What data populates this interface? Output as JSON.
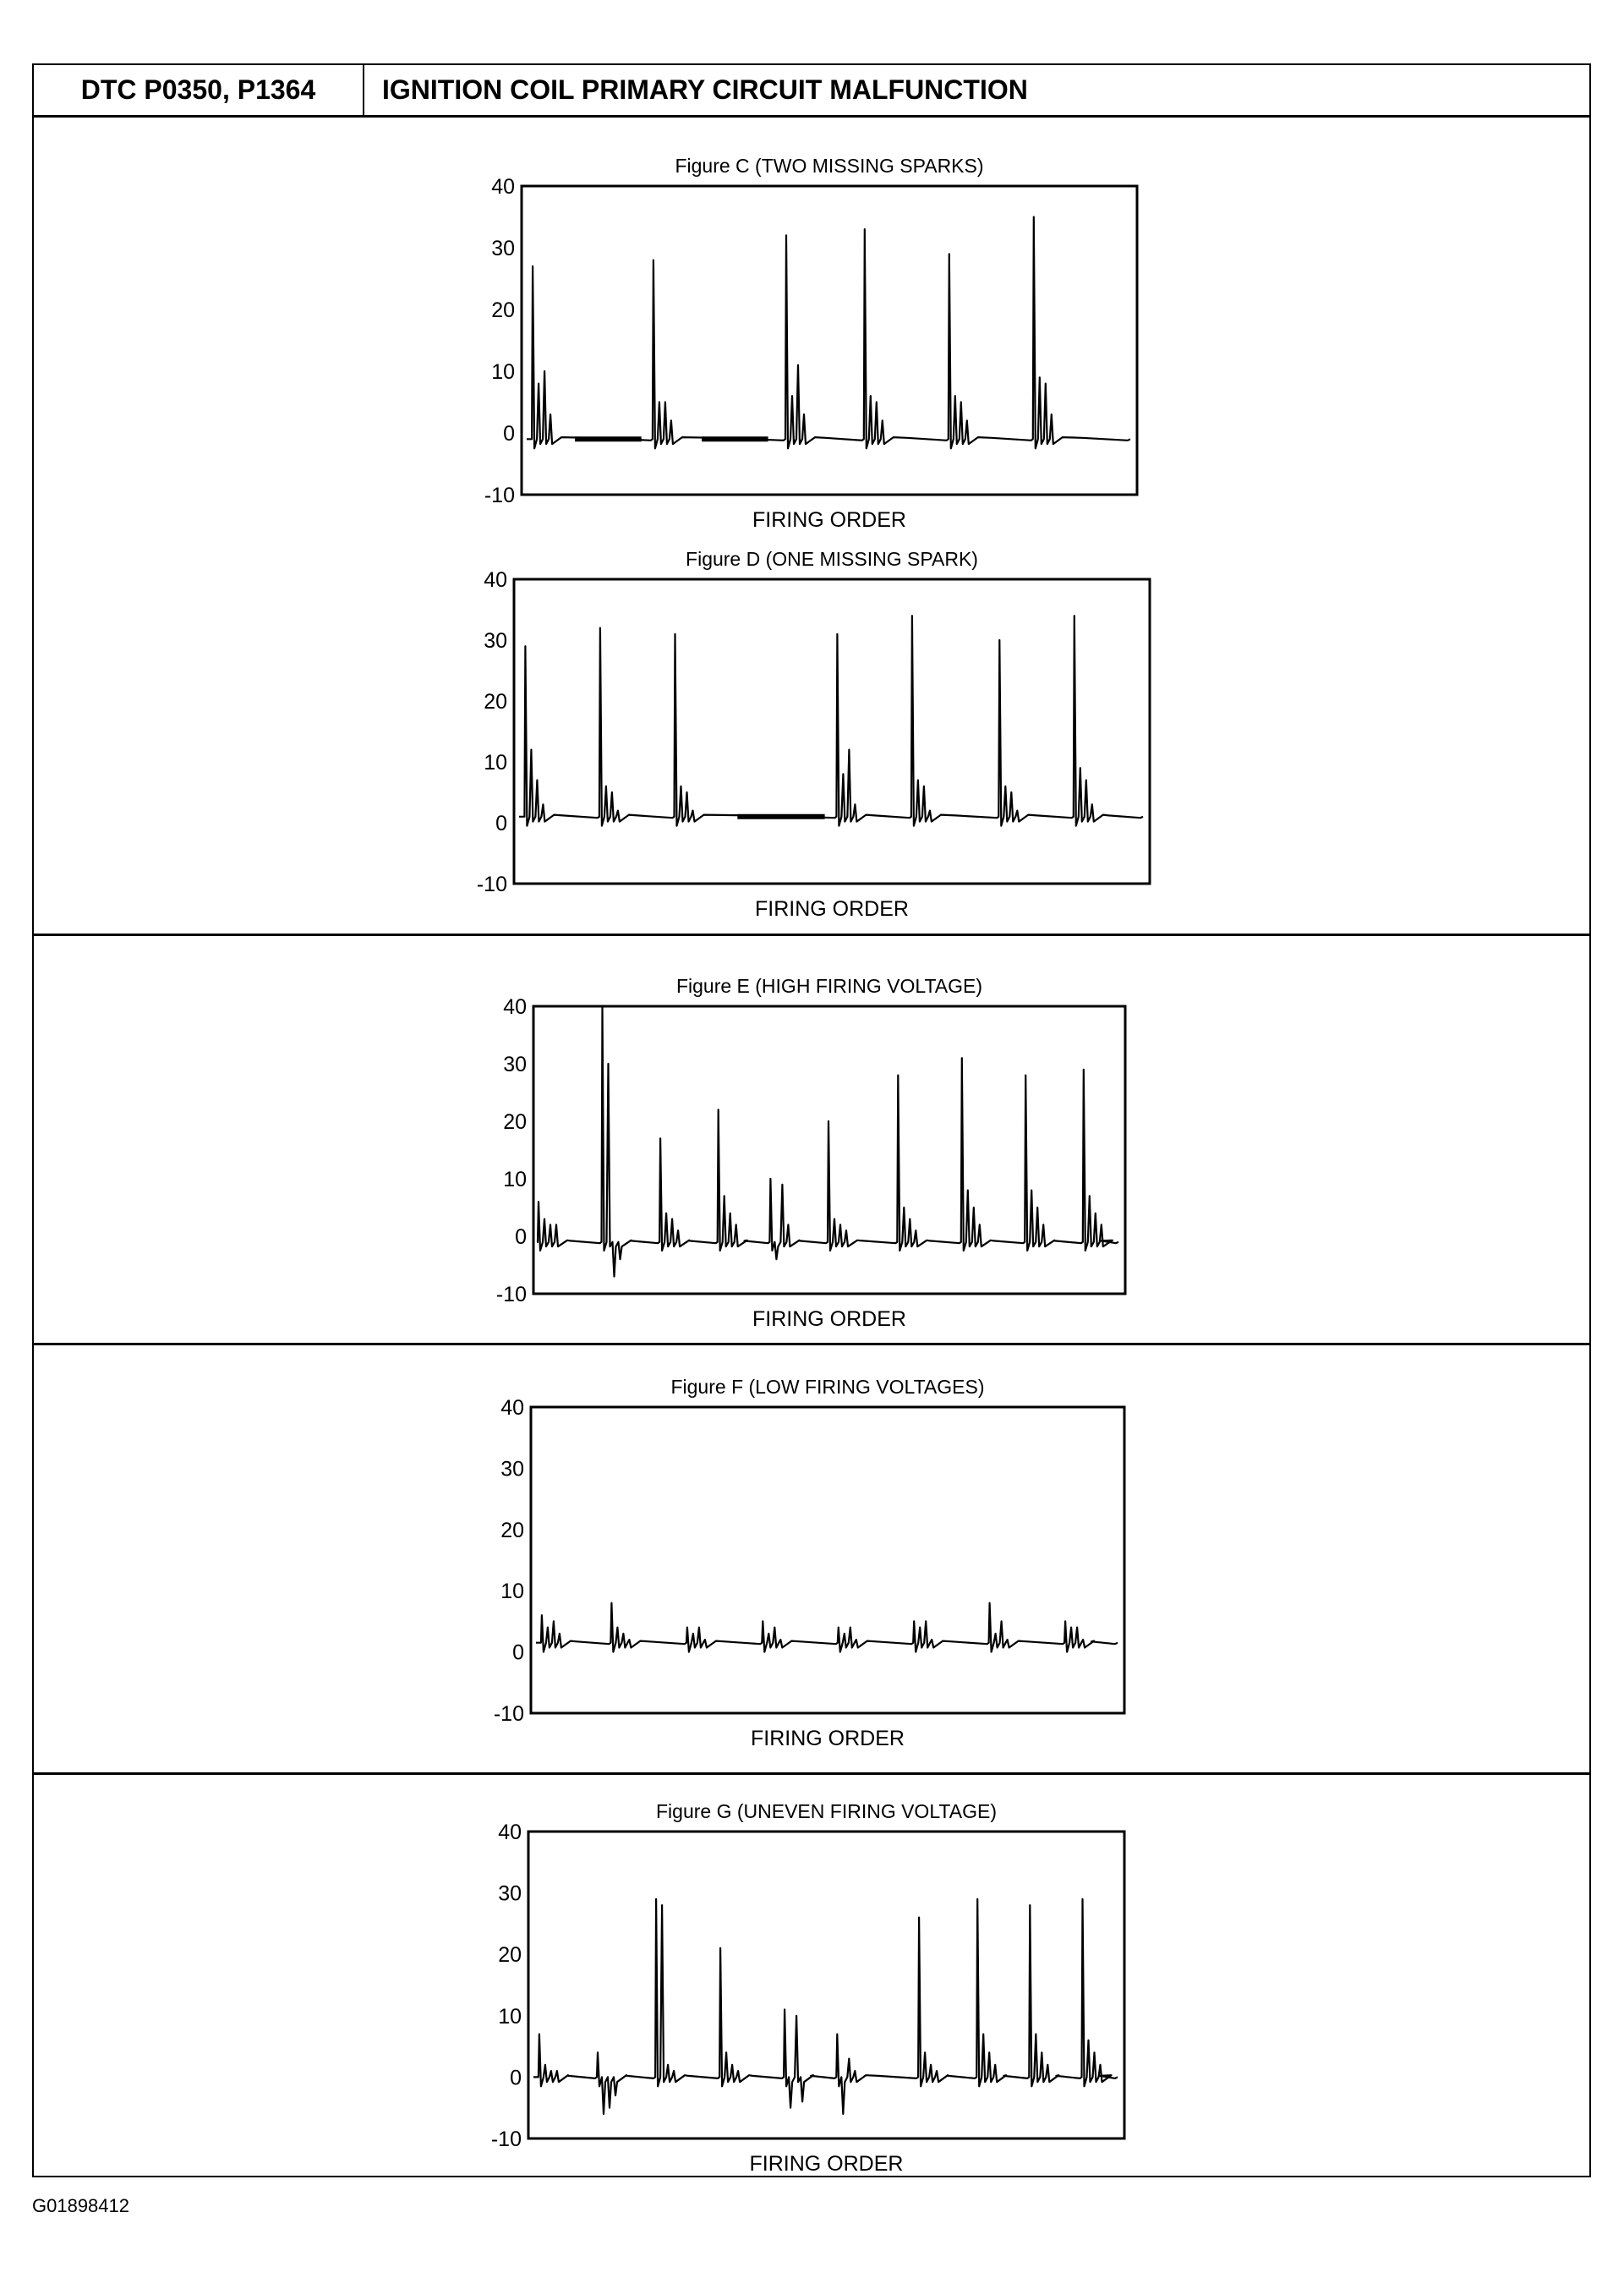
{
  "header": {
    "dtc_codes": "DTC P0350, P1364",
    "title": "IGNITION COIL PRIMARY CIRCUIT MALFUNCTION"
  },
  "footer": {
    "image_code": "G01898412"
  },
  "chart_data": [
    {
      "type": "line",
      "title": "Figure C (TWO MISSING SPARKS)",
      "xlabel": "FIRING ORDER",
      "ylabel": "",
      "ylim": [
        -10,
        40
      ],
      "yticks": [
        40,
        30,
        20,
        10,
        0,
        -10
      ],
      "grid": false,
      "baseline": -1,
      "firing_events": [
        {
          "t": 0.01,
          "peak": 27,
          "after": [
            8,
            10,
            3
          ]
        },
        {
          "t": 0.21,
          "peak": 28,
          "after": [
            5,
            5,
            2
          ]
        },
        {
          "t": 0.43,
          "peak": 32,
          "after": [
            6,
            11,
            3
          ]
        },
        {
          "t": 0.56,
          "peak": 33,
          "after": [
            6,
            5,
            2
          ]
        },
        {
          "t": 0.7,
          "peak": 29,
          "after": [
            6,
            5,
            2
          ]
        },
        {
          "t": 0.84,
          "peak": 35,
          "after": [
            9,
            8,
            3
          ]
        }
      ],
      "missing_spark_segments": [
        [
          0.08,
          0.19
        ],
        [
          0.29,
          0.4
        ]
      ]
    },
    {
      "type": "line",
      "title": "Figure D (ONE MISSING SPARK)",
      "xlabel": "FIRING ORDER",
      "ylabel": "",
      "ylim": [
        -10,
        40
      ],
      "yticks": [
        40,
        30,
        20,
        10,
        0,
        -10
      ],
      "grid": false,
      "baseline": 1,
      "firing_events": [
        {
          "t": 0.01,
          "peak": 29,
          "after": [
            12,
            7,
            3
          ]
        },
        {
          "t": 0.13,
          "peak": 32,
          "after": [
            6,
            5,
            2
          ]
        },
        {
          "t": 0.25,
          "peak": 31,
          "after": [
            6,
            5,
            2
          ]
        },
        {
          "t": 0.51,
          "peak": 31,
          "after": [
            8,
            12,
            3
          ]
        },
        {
          "t": 0.63,
          "peak": 34,
          "after": [
            7,
            6,
            2
          ]
        },
        {
          "t": 0.77,
          "peak": 30,
          "after": [
            6,
            5,
            2
          ]
        },
        {
          "t": 0.89,
          "peak": 34,
          "after": [
            9,
            7,
            3
          ]
        }
      ],
      "missing_spark_segments": [
        [
          0.35,
          0.49
        ]
      ]
    },
    {
      "type": "line",
      "title": "Figure E (HIGH FIRING VOLTAGE)",
      "xlabel": "FIRING ORDER",
      "ylabel": "",
      "ylim": [
        -10,
        40
      ],
      "yticks": [
        40,
        30,
        20,
        10,
        0,
        -10
      ],
      "grid": false,
      "baseline": -1,
      "firing_events": [
        {
          "t": 0.0,
          "peak": 6,
          "after": [
            3,
            2,
            2
          ]
        },
        {
          "t": 0.11,
          "peak": 40,
          "after": [
            30,
            -7,
            -4
          ]
        },
        {
          "t": 0.21,
          "peak": 17,
          "after": [
            4,
            3,
            1
          ]
        },
        {
          "t": 0.31,
          "peak": 22,
          "after": [
            7,
            4,
            2
          ]
        },
        {
          "t": 0.4,
          "peak": 10,
          "after": [
            -4,
            9,
            2
          ]
        },
        {
          "t": 0.5,
          "peak": 20,
          "after": [
            3,
            2,
            1
          ]
        },
        {
          "t": 0.62,
          "peak": 28,
          "after": [
            5,
            3,
            1
          ]
        },
        {
          "t": 0.73,
          "peak": 31,
          "after": [
            8,
            5,
            2
          ]
        },
        {
          "t": 0.84,
          "peak": 28,
          "after": [
            8,
            5,
            2
          ]
        },
        {
          "t": 0.94,
          "peak": 29,
          "after": [
            7,
            4,
            2
          ]
        }
      ],
      "missing_spark_segments": []
    },
    {
      "type": "line",
      "title": "Figure F (LOW FIRING VOLTAGES)",
      "xlabel": "FIRING ORDER",
      "ylabel": "",
      "ylim": [
        -10,
        40
      ],
      "yticks": [
        40,
        30,
        20,
        10,
        0,
        -10
      ],
      "grid": false,
      "baseline": 1.5,
      "firing_events": [
        {
          "t": 0.01,
          "peak": 6,
          "after": [
            4,
            5,
            3
          ]
        },
        {
          "t": 0.13,
          "peak": 8,
          "after": [
            4,
            3,
            2
          ]
        },
        {
          "t": 0.26,
          "peak": 4,
          "after": [
            3,
            4,
            2
          ]
        },
        {
          "t": 0.39,
          "peak": 5,
          "after": [
            3,
            4,
            2
          ]
        },
        {
          "t": 0.52,
          "peak": 4,
          "after": [
            3,
            4,
            2
          ]
        },
        {
          "t": 0.65,
          "peak": 5,
          "after": [
            4,
            5,
            2
          ]
        },
        {
          "t": 0.78,
          "peak": 8,
          "after": [
            3,
            5,
            2
          ]
        },
        {
          "t": 0.91,
          "peak": 5,
          "after": [
            4,
            4,
            2
          ]
        }
      ],
      "missing_spark_segments": []
    },
    {
      "type": "line",
      "title": "Figure G (UNEVEN FIRING VOLTAGE)",
      "xlabel": "FIRING ORDER",
      "ylabel": "",
      "ylim": [
        -10,
        40
      ],
      "yticks": [
        40,
        30,
        20,
        10,
        0,
        -10
      ],
      "grid": false,
      "baseline": 0,
      "firing_events": [
        {
          "t": 0.01,
          "peak": 7,
          "after": [
            2,
            1,
            1
          ]
        },
        {
          "t": 0.11,
          "peak": 4,
          "after": [
            -6,
            -5,
            -3
          ]
        },
        {
          "t": 0.21,
          "peak": 29,
          "after": [
            28,
            2,
            1
          ]
        },
        {
          "t": 0.32,
          "peak": 21,
          "after": [
            4,
            2,
            1
          ]
        },
        {
          "t": 0.43,
          "peak": 11,
          "after": [
            -5,
            10,
            -4
          ]
        },
        {
          "t": 0.52,
          "peak": 7,
          "after": [
            -6,
            3,
            1
          ]
        },
        {
          "t": 0.66,
          "peak": 26,
          "after": [
            4,
            2,
            1
          ]
        },
        {
          "t": 0.76,
          "peak": 29,
          "after": [
            7,
            4,
            2
          ]
        },
        {
          "t": 0.85,
          "peak": 28,
          "after": [
            7,
            4,
            2
          ]
        },
        {
          "t": 0.94,
          "peak": 29,
          "after": [
            6,
            4,
            2
          ]
        }
      ],
      "missing_spark_segments": []
    }
  ]
}
